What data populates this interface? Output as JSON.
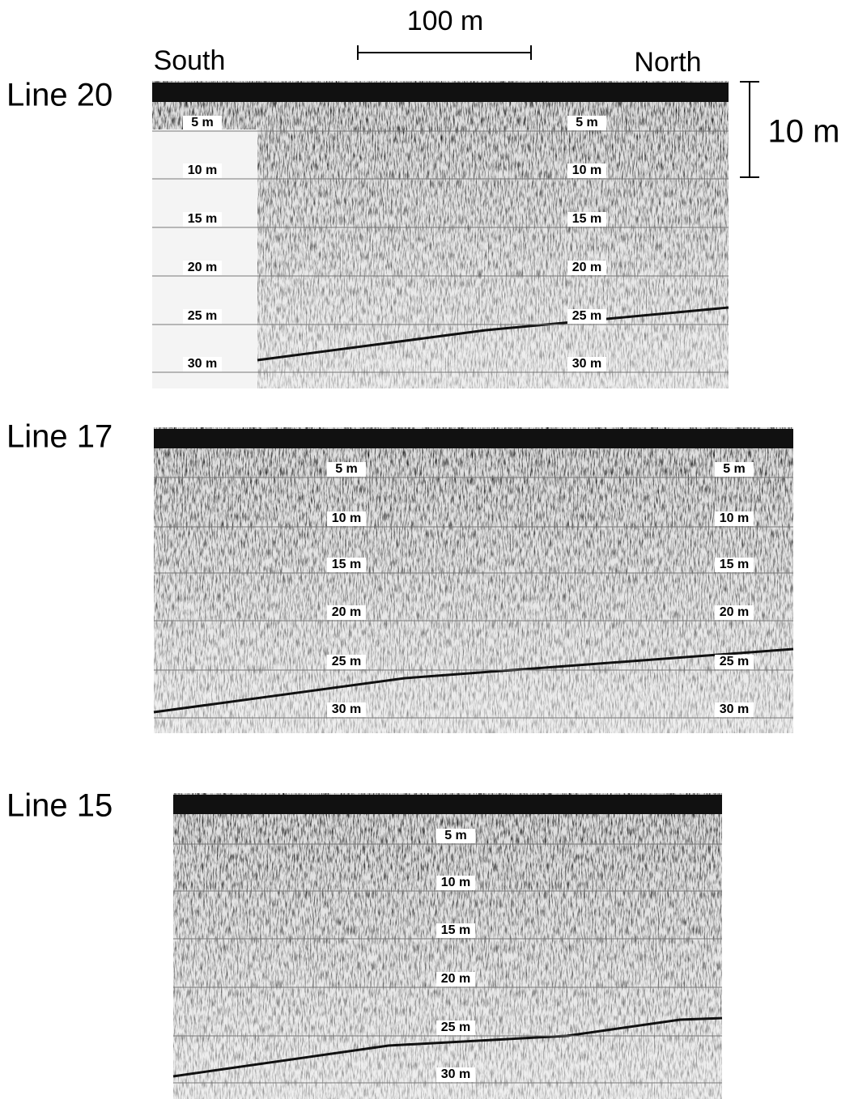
{
  "header": {
    "scale_bar_label": "100 m",
    "depth_scale_label": "10 m",
    "left_direction": "South",
    "right_direction": "North"
  },
  "panels": [
    {
      "label": "Line 20",
      "depth_columns": [
        [
          "5 m",
          "10 m",
          "15 m",
          "20 m",
          "25 m",
          "30 m"
        ],
        [
          "5 m",
          "10 m",
          "15 m",
          "20 m",
          "25 m",
          "30 m"
        ]
      ]
    },
    {
      "label": "Line 17",
      "depth_columns": [
        [
          "5 m",
          "10 m",
          "15 m",
          "20 m",
          "25 m",
          "30 m"
        ],
        [
          "5 m",
          "10 m",
          "15 m",
          "20 m",
          "25 m",
          "30 m"
        ]
      ]
    },
    {
      "label": "Line 15",
      "depth_columns": [
        [
          "5 m",
          "10 m",
          "15 m",
          "20 m",
          "25 m",
          "30 m"
        ]
      ]
    }
  ]
}
